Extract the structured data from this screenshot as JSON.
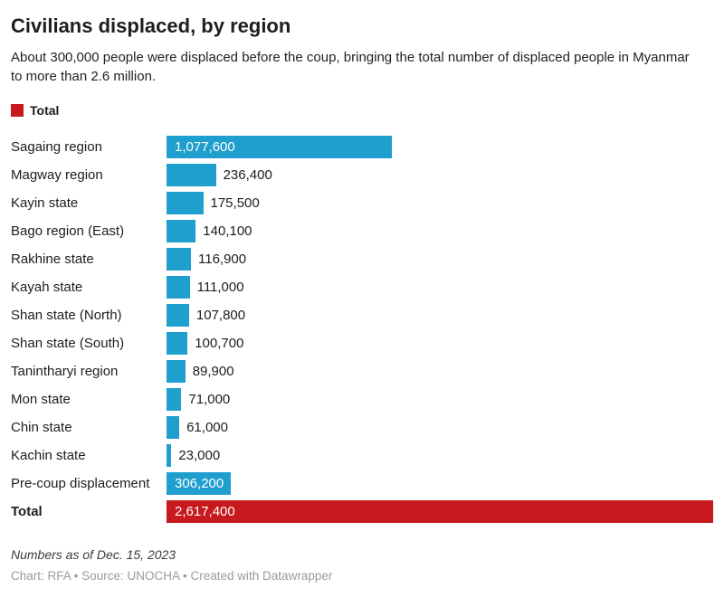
{
  "header": {
    "title": "Civilians displaced, by region",
    "subtitle": "About 300,000 people were displaced before the coup, bringing the total number of displaced people in Myanmar to more than 2.6 million."
  },
  "legend": {
    "label": "Total",
    "color": "#c8191e"
  },
  "colors": {
    "bar_blue": "#1f9fce",
    "bar_red": "#c8191e",
    "inside_label": "#ffffff",
    "outside_label": "#1d1d1d"
  },
  "chart_data": {
    "type": "bar",
    "orientation": "horizontal",
    "title": "Civilians displaced, by region",
    "xlabel": "",
    "ylabel": "",
    "axis_max": 2617400,
    "grid": false,
    "legend_position": "top-left",
    "categories": [
      "Sagaing region",
      "Magway region",
      "Kayin state",
      "Bago region (East)",
      "Rakhine state",
      "Kayah state",
      "Shan state (North)",
      "Shan state (South)",
      "Tanintharyi region",
      "Mon state",
      "Chin state",
      "Kachin state",
      "Pre-coup displacement",
      "Total"
    ],
    "values": [
      1077600,
      236400,
      175500,
      140100,
      116900,
      111000,
      107800,
      100700,
      89900,
      71000,
      61000,
      23000,
      306200,
      2617400
    ],
    "rows": [
      {
        "label": "Sagaing region",
        "value": 1077600,
        "display": "1,077,600",
        "label_inside": true,
        "kind": "blue",
        "bold": false
      },
      {
        "label": "Magway region",
        "value": 236400,
        "display": "236,400",
        "label_inside": false,
        "kind": "blue",
        "bold": false
      },
      {
        "label": "Kayin state",
        "value": 175500,
        "display": "175,500",
        "label_inside": false,
        "kind": "blue",
        "bold": false
      },
      {
        "label": "Bago region (East)",
        "value": 140100,
        "display": "140,100",
        "label_inside": false,
        "kind": "blue",
        "bold": false
      },
      {
        "label": "Rakhine state",
        "value": 116900,
        "display": "116,900",
        "label_inside": false,
        "kind": "blue",
        "bold": false
      },
      {
        "label": "Kayah state",
        "value": 111000,
        "display": "111,000",
        "label_inside": false,
        "kind": "blue",
        "bold": false
      },
      {
        "label": "Shan state (North)",
        "value": 107800,
        "display": "107,800",
        "label_inside": false,
        "kind": "blue",
        "bold": false
      },
      {
        "label": "Shan state (South)",
        "value": 100700,
        "display": "100,700",
        "label_inside": false,
        "kind": "blue",
        "bold": false
      },
      {
        "label": "Tanintharyi region",
        "value": 89900,
        "display": "89,900",
        "label_inside": false,
        "kind": "blue",
        "bold": false
      },
      {
        "label": "Mon state",
        "value": 71000,
        "display": "71,000",
        "label_inside": false,
        "kind": "blue",
        "bold": false
      },
      {
        "label": "Chin state",
        "value": 61000,
        "display": "61,000",
        "label_inside": false,
        "kind": "blue",
        "bold": false
      },
      {
        "label": "Kachin state",
        "value": 23000,
        "display": "23,000",
        "label_inside": false,
        "kind": "blue",
        "bold": false
      },
      {
        "label": "Pre-coup displacement",
        "value": 306200,
        "display": "306,200",
        "label_inside": true,
        "kind": "blue",
        "bold": false
      },
      {
        "label": "Total",
        "value": 2617400,
        "display": "2,617,400",
        "label_inside": true,
        "kind": "total",
        "bold": true
      }
    ]
  },
  "footnote": "Numbers as of Dec. 15, 2023",
  "footer": "Chart: RFA • Source: UNOCHA • Created with Datawrapper"
}
